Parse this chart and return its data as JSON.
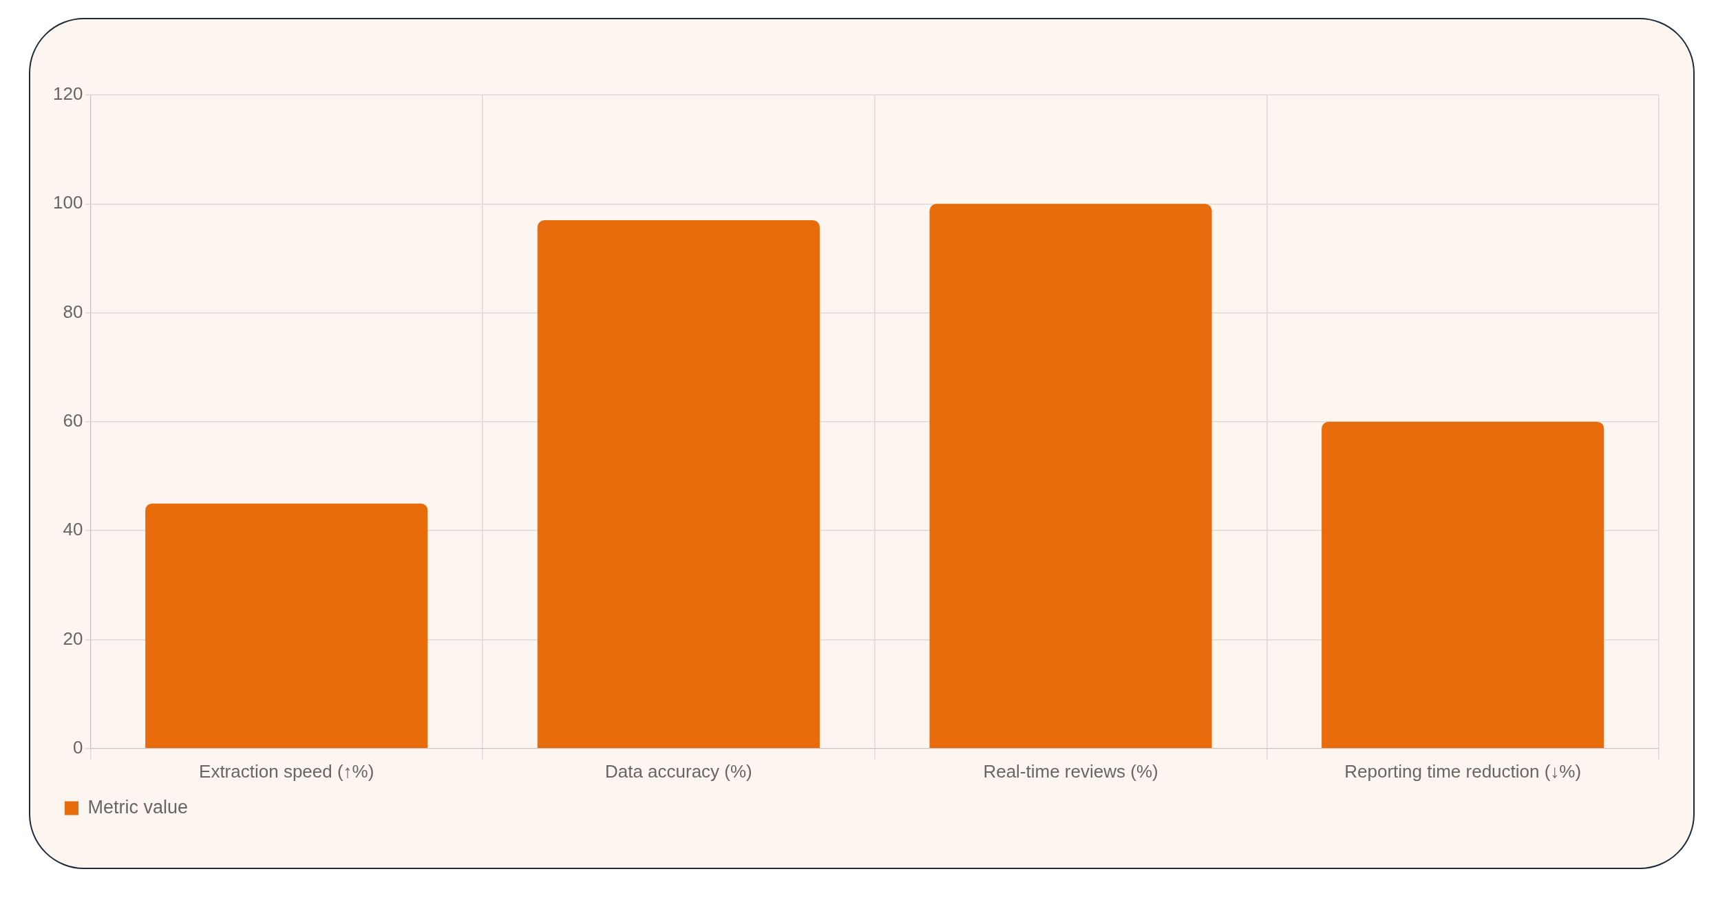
{
  "chart_data": {
    "type": "bar",
    "categories": [
      "Extraction speed (↑%)",
      "Data accuracy (%)",
      "Real-time reviews (%)",
      "Reporting time reduction (↓%)"
    ],
    "series": [
      {
        "name": "Metric value",
        "color": "#e96c0c",
        "values": [
          45,
          97,
          100,
          60
        ]
      }
    ],
    "ylim": [
      0,
      120
    ],
    "yticks": [
      0,
      20,
      40,
      60,
      80,
      100,
      120
    ],
    "grid": true,
    "legend": "bottom left"
  }
}
